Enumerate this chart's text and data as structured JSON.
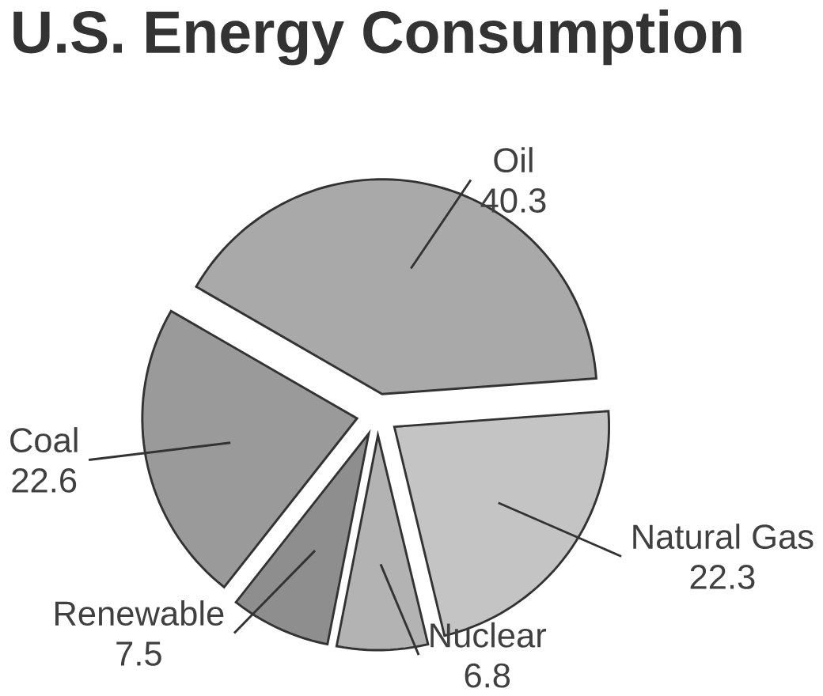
{
  "chart_data": {
    "type": "pie",
    "title": "U.S. Energy Consumption",
    "categories": [
      "Oil",
      "Natural Gas",
      "Nuclear",
      "Renewable",
      "Coal"
    ],
    "values": [
      40.3,
      22.3,
      6.8,
      7.5,
      22.6
    ],
    "colors": [
      "#a9a9a9",
      "#c4c4c4",
      "#b3b3b3",
      "#8e8e8e",
      "#9a9a9a"
    ],
    "data_labels": true
  }
}
